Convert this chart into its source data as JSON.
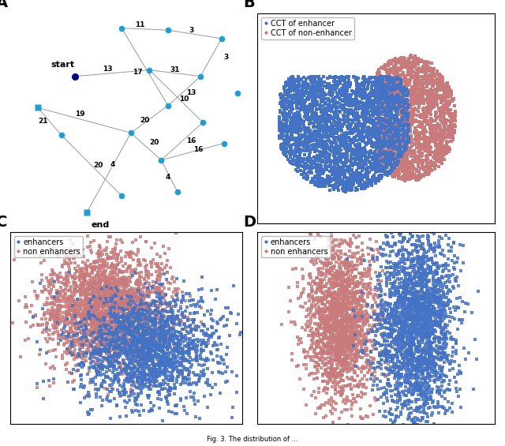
{
  "panel_labels": [
    "A",
    "B",
    "C",
    "D"
  ],
  "panel_label_fontsize": 14,
  "panel_label_fontweight": "bold",
  "bg_color": "#ffffff",
  "node_color_cyan": "#1E9FD4",
  "node_color_dark_blue": "#00008B",
  "edge_color": "#999999",
  "blue_scatter": "#4472C4",
  "pink_scatter": "#C97B7B",
  "legend_fontsize": 7,
  "marker_size_B": 8,
  "marker_size_CD": 6
}
